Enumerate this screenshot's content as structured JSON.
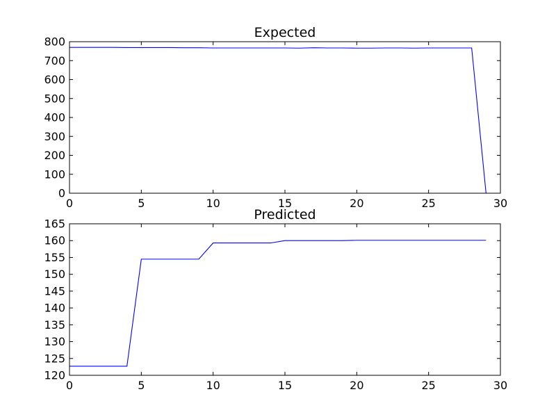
{
  "chart_data": [
    {
      "type": "line",
      "title": "Expected",
      "xlabel": "",
      "ylabel": "",
      "xlim": [
        0,
        30
      ],
      "ylim": [
        0,
        800
      ],
      "xticks": [
        0,
        5,
        10,
        15,
        20,
        25,
        30
      ],
      "yticks": [
        0,
        100,
        200,
        300,
        400,
        500,
        600,
        700,
        800
      ],
      "grid": false,
      "series": [
        {
          "color": "#0000ff",
          "x": [
            0,
            1,
            2,
            3,
            4,
            5,
            6,
            7,
            8,
            9,
            10,
            11,
            12,
            13,
            14,
            15,
            16,
            17,
            18,
            19,
            20,
            21,
            22,
            23,
            24,
            25,
            26,
            27,
            28,
            29
          ],
          "y": [
            770,
            770,
            770,
            770,
            769,
            769,
            769,
            769,
            768,
            768,
            767,
            767,
            767,
            767,
            767,
            767,
            766,
            768,
            767,
            767,
            766,
            766,
            767,
            767,
            766,
            767,
            767,
            767,
            767,
            0
          ]
        }
      ]
    },
    {
      "type": "line",
      "title": "Predicted",
      "xlabel": "",
      "ylabel": "",
      "xlim": [
        0,
        30
      ],
      "ylim": [
        120,
        165
      ],
      "xticks": [
        0,
        5,
        10,
        15,
        20,
        25,
        30
      ],
      "yticks": [
        120,
        125,
        130,
        135,
        140,
        145,
        150,
        155,
        160,
        165
      ],
      "grid": false,
      "series": [
        {
          "color": "#0000ff",
          "x": [
            0,
            1,
            2,
            3,
            4,
            5,
            6,
            7,
            8,
            9,
            10,
            11,
            12,
            13,
            14,
            15,
            16,
            17,
            18,
            19,
            20,
            21,
            22,
            23,
            24,
            25,
            26,
            27,
            28,
            29
          ],
          "y": [
            122.7,
            122.7,
            122.7,
            122.7,
            122.7,
            154.5,
            154.5,
            154.5,
            154.5,
            154.5,
            159.3,
            159.3,
            159.3,
            159.3,
            159.3,
            160.0,
            160.0,
            160.0,
            160.0,
            160.0,
            160.1,
            160.1,
            160.1,
            160.1,
            160.1,
            160.1,
            160.1,
            160.1,
            160.1,
            160.1
          ]
        }
      ]
    }
  ]
}
